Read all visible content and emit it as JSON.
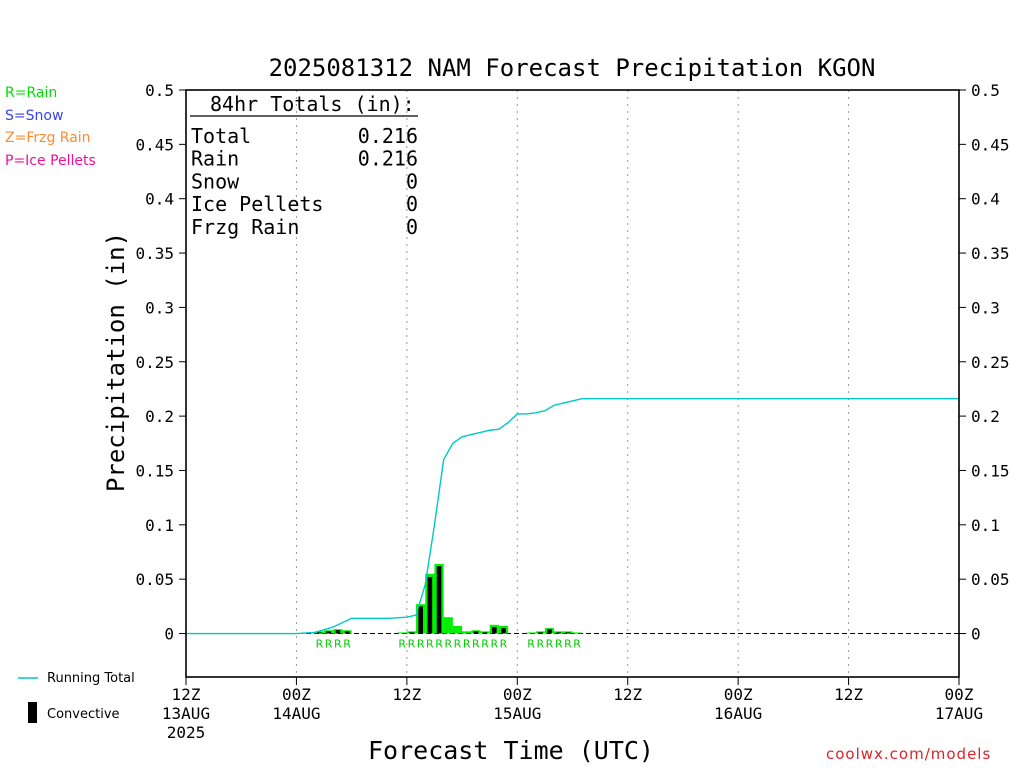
{
  "chart_data": {
    "type": "bar",
    "title": "2025081312 NAM Forecast Precipitation KGON",
    "xlabel": "Forecast Time (UTC)",
    "ylabel": "Precipitation (in)",
    "ylim": [
      -0.04,
      0.5
    ],
    "xlim_hours": [
      0,
      84
    ],
    "y_ticks": [
      "0.5",
      "0.45",
      "0.4",
      "0.35",
      "0.3",
      "0.25",
      "0.2",
      "0.15",
      "0.1",
      "0.05",
      "0"
    ],
    "y_tick_values": [
      0.5,
      0.45,
      0.4,
      0.35,
      0.3,
      0.25,
      0.2,
      0.15,
      0.1,
      0.05,
      0
    ],
    "x_ticks": [
      {
        "hour": 0,
        "label": "12Z",
        "date": "13AUG",
        "year": "2025"
      },
      {
        "hour": 12,
        "label": "00Z",
        "date": "14AUG",
        "year": ""
      },
      {
        "hour": 24,
        "label": "12Z",
        "date": "",
        "year": ""
      },
      {
        "hour": 36,
        "label": "00Z",
        "date": "15AUG",
        "year": ""
      },
      {
        "hour": 48,
        "label": "12Z",
        "date": "",
        "year": ""
      },
      {
        "hour": 60,
        "label": "00Z",
        "date": "16AUG",
        "year": ""
      },
      {
        "hour": 72,
        "label": "12Z",
        "date": "",
        "year": ""
      },
      {
        "hour": 84,
        "label": "00Z",
        "date": "17AUG",
        "year": ""
      }
    ],
    "grid": "vertical dotted at 12-hour intervals",
    "totals_box": {
      "heading": "84hr Totals (in):",
      "rows": [
        {
          "label": "Total",
          "value": "0.216"
        },
        {
          "label": "Rain",
          "value": "0.216"
        },
        {
          "label": "Snow",
          "value": "0"
        },
        {
          "label": "Ice Pellets",
          "value": "0"
        },
        {
          "label": "Frzg Rain",
          "value": "0"
        }
      ]
    },
    "type_legend": [
      {
        "text": "R=Rain",
        "color": "#00dd00"
      },
      {
        "text": "S=Snow",
        "color": "#3344ee"
      },
      {
        "text": "Z=Frzg Rain",
        "color": "#ff8a30"
      },
      {
        "text": "P=Ice Pellets",
        "color": "#ee1199"
      }
    ],
    "series_legend": [
      {
        "name": "Running Total",
        "color": "#00c8c8",
        "kind": "line"
      },
      {
        "name": "Convective",
        "color": "#000000",
        "kind": "bar"
      }
    ],
    "bars": [
      {
        "hour": 15,
        "total": 0.002,
        "convective": 0.001,
        "type": "R"
      },
      {
        "hour": 16,
        "total": 0.003,
        "convective": 0.002,
        "type": "R"
      },
      {
        "hour": 17,
        "total": 0.004,
        "convective": 0.003,
        "type": "R"
      },
      {
        "hour": 18,
        "total": 0.003,
        "convective": 0.002,
        "type": "R"
      },
      {
        "hour": 24,
        "total": 0.001,
        "convective": 0.0,
        "type": "R"
      },
      {
        "hour": 25,
        "total": 0.002,
        "convective": 0.001,
        "type": "R"
      },
      {
        "hour": 26,
        "total": 0.027,
        "convective": 0.025,
        "type": "R"
      },
      {
        "hour": 27,
        "total": 0.055,
        "convective": 0.052,
        "type": "R"
      },
      {
        "hour": 28,
        "total": 0.064,
        "convective": 0.062,
        "type": "R"
      },
      {
        "hour": 29,
        "total": 0.015,
        "convective": 0.0,
        "type": "R"
      },
      {
        "hour": 30,
        "total": 0.007,
        "convective": 0.0,
        "type": "R"
      },
      {
        "hour": 31,
        "total": 0.002,
        "convective": 0.0,
        "type": "R"
      },
      {
        "hour": 32,
        "total": 0.003,
        "convective": 0.002,
        "type": "R"
      },
      {
        "hour": 33,
        "total": 0.002,
        "convective": 0.001,
        "type": "R"
      },
      {
        "hour": 34,
        "total": 0.008,
        "convective": 0.006,
        "type": "R"
      },
      {
        "hour": 35,
        "total": 0.007,
        "convective": 0.005,
        "type": "R"
      },
      {
        "hour": 38,
        "total": 0.001,
        "convective": 0.0,
        "type": "R"
      },
      {
        "hour": 39,
        "total": 0.002,
        "convective": 0.001,
        "type": "R"
      },
      {
        "hour": 40,
        "total": 0.005,
        "convective": 0.004,
        "type": "R"
      },
      {
        "hour": 41,
        "total": 0.002,
        "convective": 0.001,
        "type": "R"
      },
      {
        "hour": 42,
        "total": 0.002,
        "convective": 0.001,
        "type": "R"
      },
      {
        "hour": 43,
        "total": 0.001,
        "convective": 0.0,
        "type": "R"
      }
    ],
    "running_total": {
      "name": "Running Total",
      "x": [
        0,
        12,
        14,
        16,
        17,
        18,
        19,
        20,
        21,
        22,
        24,
        25,
        26,
        27,
        28,
        29,
        30,
        31,
        32,
        33,
        34,
        35,
        36,
        37,
        38,
        39,
        40,
        41,
        42,
        43,
        44,
        84
      ],
      "y": [
        0,
        0,
        0.001,
        0.006,
        0.01,
        0.014,
        0.014,
        0.014,
        0.014,
        0.014,
        0.015,
        0.017,
        0.045,
        0.1,
        0.16,
        0.175,
        0.181,
        0.183,
        0.185,
        0.187,
        0.188,
        0.194,
        0.202,
        0.202,
        0.203,
        0.205,
        0.21,
        0.212,
        0.214,
        0.216,
        0.216,
        0.216
      ]
    }
  },
  "watermark": "coolwx.com/models"
}
